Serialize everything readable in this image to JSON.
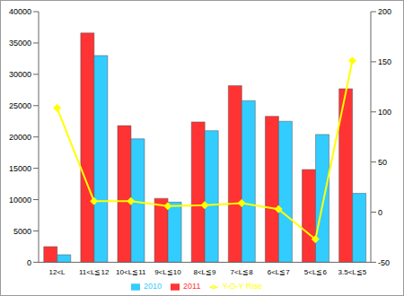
{
  "chart_data": {
    "type": "bar",
    "categories": [
      "12<L",
      "11<L≦12",
      "10<L≦11",
      "9<L≦10",
      "8<L≦9",
      "7<L≦8",
      "6<L≦7",
      "5<L≦6",
      "3.5<L≦5"
    ],
    "series": [
      {
        "name": "2011",
        "color": "#FF3333",
        "values": [
          2500,
          36600,
          21800,
          10200,
          22400,
          28200,
          23300,
          14800,
          27700
        ]
      },
      {
        "name": "2010",
        "color": "#33CCFF",
        "values": [
          1200,
          33000,
          19700,
          9600,
          21000,
          25800,
          22500,
          20400,
          11000
        ]
      },
      {
        "name": "Y-O-Y Rise",
        "type": "line",
        "color": "#FFFF00",
        "marker": "diamond",
        "axis": "y2",
        "values": [
          104,
          11,
          11,
          6,
          7,
          9,
          3,
          -27,
          151
        ]
      }
    ],
    "ylim": [
      0,
      40000
    ],
    "yticks": [
      0,
      5000,
      10000,
      15000,
      20000,
      25000,
      30000,
      35000,
      40000
    ],
    "y2lim": [
      -50,
      200
    ],
    "y2ticks": [
      -50,
      0,
      50,
      100,
      150,
      200
    ],
    "grid": false,
    "legend": "bottom"
  }
}
